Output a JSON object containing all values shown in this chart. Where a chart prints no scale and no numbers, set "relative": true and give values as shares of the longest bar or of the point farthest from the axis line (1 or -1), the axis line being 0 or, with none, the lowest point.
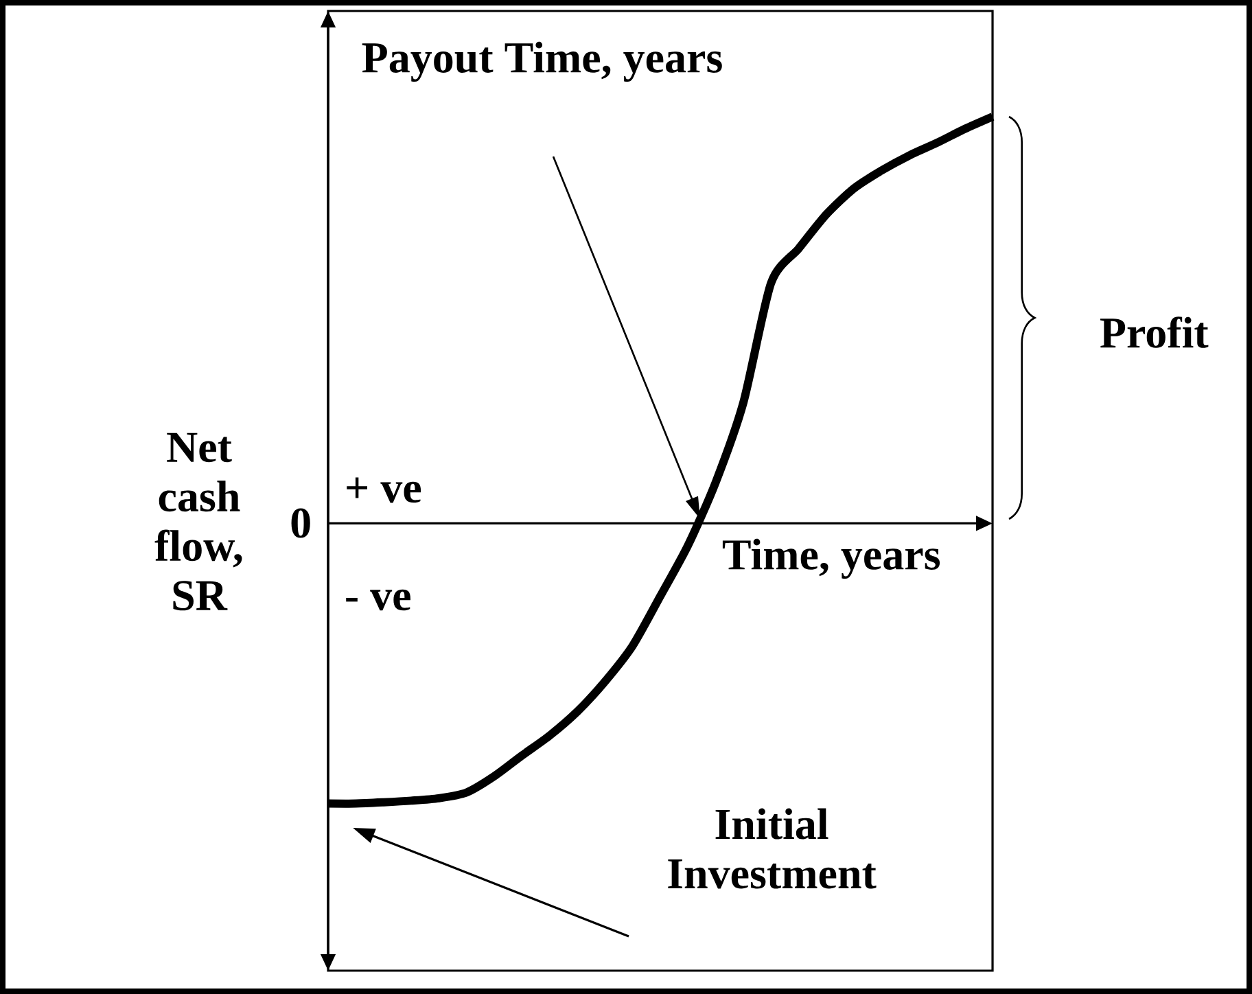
{
  "chart_data": {
    "type": "line",
    "relative": true,
    "categories": [
      null,
      null,
      null,
      null,
      null,
      null,
      null,
      null,
      null,
      null,
      null,
      null,
      null,
      null,
      null,
      null,
      null,
      null,
      null,
      null,
      null,
      null,
      null,
      null,
      null
    ],
    "values": [
      -0.689,
      -0.689,
      -0.686,
      -0.682,
      -0.676,
      -0.662,
      -0.622,
      -0.571,
      -0.522,
      -0.463,
      -0.389,
      -0.301,
      -0.179,
      -0.054,
      0.101,
      0.297,
      0.591,
      0.676,
      0.76,
      0.824,
      0.868,
      0.905,
      0.936,
      0.97,
      1.0
    ],
    "color": "#000000",
    "xlabel": "Time, years",
    "ylabel": "Net cash flow, SR",
    "annotations": [
      "0",
      "+ ve",
      "- ve",
      "Payout Time, years",
      "Profit",
      "Initial Investment"
    ]
  }
}
